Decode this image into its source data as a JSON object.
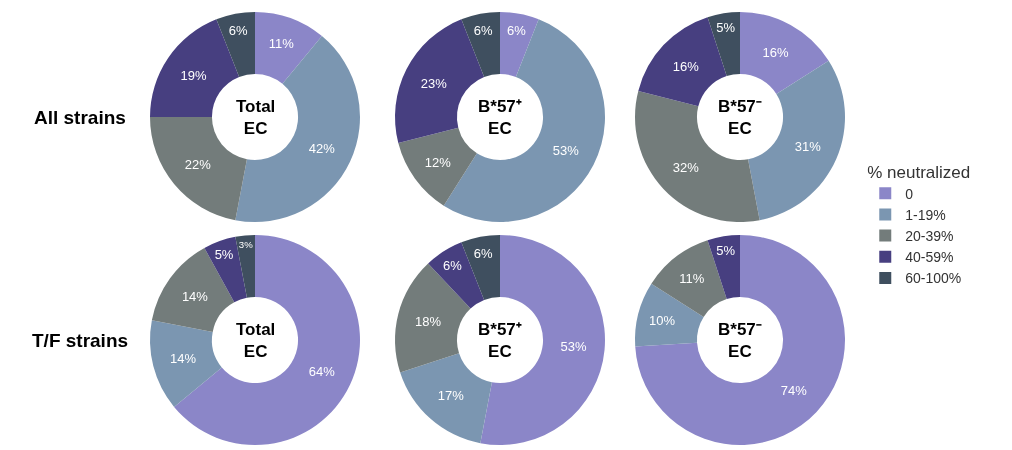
{
  "chart_data": {
    "type": "donut",
    "legend": "right",
    "legend_title": "% neutralized",
    "annotations": [
      "All strains",
      "T/F strains"
    ],
    "categories": [
      "0",
      "1-19%",
      "20-39%",
      "40-59%",
      "60-100%"
    ],
    "colors": [
      "#8b86c8",
      "#7b96b1",
      "#737c7b",
      "#473f80",
      "#3f4f5f"
    ],
    "series": [
      {
        "name": "Total\nEC",
        "values": [
          11,
          42,
          22,
          19,
          6
        ],
        "value_labels": [
          "11%",
          "42%",
          "22%",
          "19%",
          "6%"
        ]
      },
      {
        "name": "B*57⁺\nEC",
        "values": [
          6,
          53,
          12,
          23,
          6
        ],
        "value_labels": [
          "6%",
          "53%",
          "12%",
          "23%",
          "6%"
        ]
      },
      {
        "name": "B*57⁻\nEC",
        "values": [
          16,
          31,
          32,
          16,
          5
        ],
        "value_labels": [
          "16%",
          "31%",
          "32%",
          "16%",
          "5%"
        ]
      },
      {
        "name": "Total\nEC",
        "values": [
          64,
          14,
          14,
          5,
          3
        ],
        "value_labels": [
          "64%",
          "14%",
          "14%",
          "5%",
          "3%"
        ]
      },
      {
        "name": "B*57⁺\nEC",
        "values": [
          53,
          17,
          18,
          6,
          6
        ],
        "value_labels": [
          "53%",
          "17%",
          "18%",
          "6%",
          "6%"
        ]
      },
      {
        "name": "B*57⁻\nEC",
        "values": [
          74,
          10,
          11,
          5,
          0
        ],
        "value_labels": [
          "74%",
          "10%",
          "11%",
          "5%",
          null
        ]
      }
    ]
  }
}
